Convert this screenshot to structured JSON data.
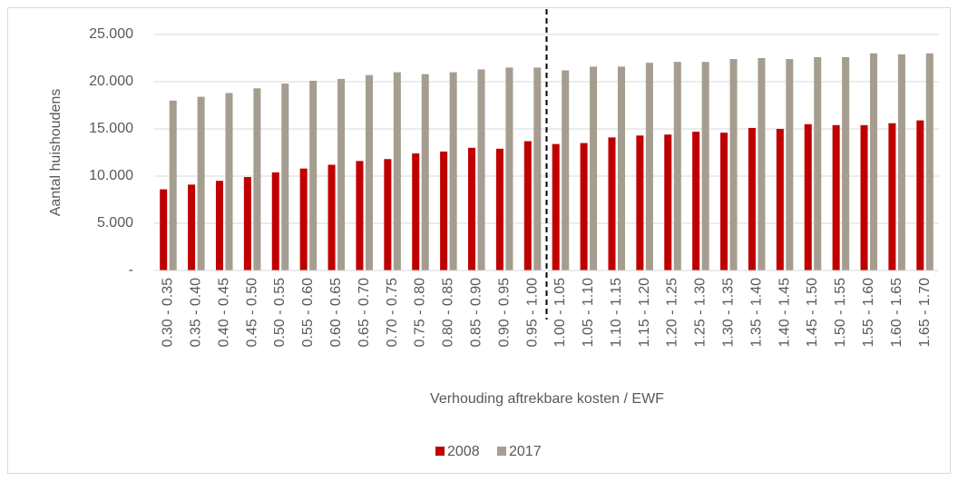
{
  "chart_data": {
    "type": "bar",
    "y_label": "Aantal huishoudens",
    "x_label": "Verhouding aftrekbare kosten / EWF",
    "categories": [
      "0.30 - 0.35",
      "0.35 - 0.40",
      "0.40 - 0.45",
      "0.45 - 0.50",
      "0.50 - 0.55",
      "0.55 - 0.60",
      "0.60 - 0.65",
      "0.65 - 0.70",
      "0.70 - 0.75",
      "0.75 - 0.80",
      "0.80 - 0.85",
      "0.85 - 0.90",
      "0.90 - 0.95",
      "0.95 - 1.00",
      "1.00 - 1.05",
      "1.05 - 1.10",
      "1.10 - 1.15",
      "1.15 - 1.20",
      "1.20 - 1.25",
      "1.25 - 1.30",
      "1.30 - 1.35",
      "1.35 - 1.40",
      "1.40 - 1.45",
      "1.45 - 1.50",
      "1.50 - 1.55",
      "1.55 - 1.60",
      "1.60 - 1.65",
      "1.65 - 1.70"
    ],
    "series": [
      {
        "name": "2008",
        "color": "#c00000",
        "values": [
          8600,
          9100,
          9500,
          9900,
          10400,
          10800,
          11200,
          11600,
          11800,
          12400,
          12600,
          13000,
          12900,
          13700,
          13400,
          13500,
          14100,
          14300,
          14400,
          14700,
          14600,
          15100,
          15000,
          15500,
          15400,
          15400,
          15600,
          15900
        ]
      },
      {
        "name": "2017",
        "color": "#a59d8f",
        "values": [
          18000,
          18400,
          18800,
          19300,
          19800,
          20100,
          20300,
          20700,
          21000,
          20800,
          21000,
          21300,
          21500,
          21500,
          21200,
          21600,
          21600,
          22000,
          22100,
          22100,
          22400,
          22500,
          22400,
          22600,
          22600,
          23000,
          22900,
          23000
        ]
      }
    ],
    "ylim": [
      0,
      25000
    ],
    "yticks": [
      {
        "value": 0,
        "label": "-"
      },
      {
        "value": 5000,
        "label": "5.000"
      },
      {
        "value": 10000,
        "label": "10.000"
      },
      {
        "value": 15000,
        "label": "15.000"
      },
      {
        "value": 20000,
        "label": "20.000"
      },
      {
        "value": 25000,
        "label": "25.000"
      }
    ],
    "grid": true,
    "legend": "bottom"
  }
}
